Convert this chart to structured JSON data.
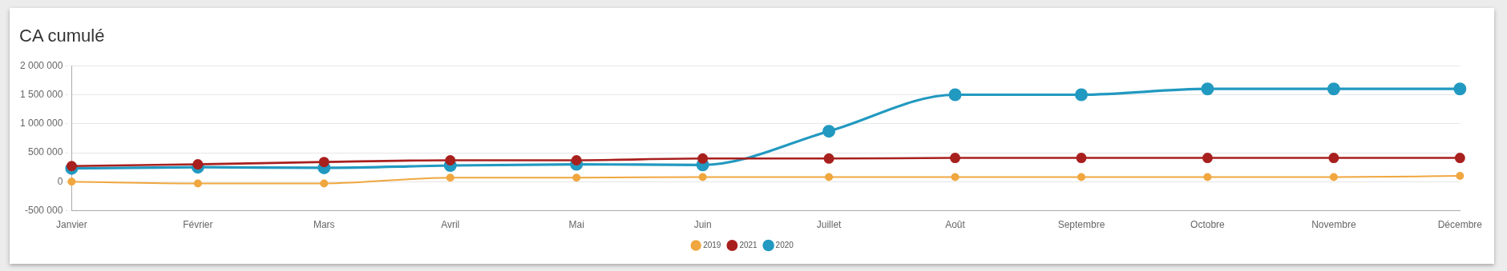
{
  "chart_data": {
    "type": "line",
    "title": "CA cumulé",
    "categories": [
      "Janvier",
      "Février",
      "Mars",
      "Avril",
      "Mai",
      "Juin",
      "Juillet",
      "Août",
      "Septembre",
      "Octobre",
      "Novembre",
      "Décembre"
    ],
    "series": [
      {
        "name": "2019",
        "color": "#f0a73f",
        "values": [
          0,
          -30000,
          -30000,
          70000,
          70000,
          80000,
          80000,
          80000,
          80000,
          80000,
          80000,
          100000
        ]
      },
      {
        "name": "2021",
        "color": "#a8201e",
        "values": [
          270000,
          300000,
          340000,
          370000,
          370000,
          400000,
          400000,
          410000,
          410000,
          410000,
          410000,
          410000
        ]
      },
      {
        "name": "2020",
        "color": "#2299c0",
        "values": [
          230000,
          250000,
          240000,
          280000,
          300000,
          290000,
          870000,
          1500000,
          1500000,
          1600000,
          1600000,
          1600000
        ]
      }
    ],
    "ylim": [
      -500000,
      2000000
    ],
    "yticks": [
      {
        "value": -500000,
        "label": "-500 000"
      },
      {
        "value": 0,
        "label": "0"
      },
      {
        "value": 500000,
        "label": "500 000"
      },
      {
        "value": 1000000,
        "label": "1 000 000"
      },
      {
        "value": 1500000,
        "label": "1 500 000"
      },
      {
        "value": 2000000,
        "label": "2 000 000"
      }
    ],
    "grid": "y",
    "legend": "bottom",
    "marker": "circle",
    "line_style": "solid"
  }
}
